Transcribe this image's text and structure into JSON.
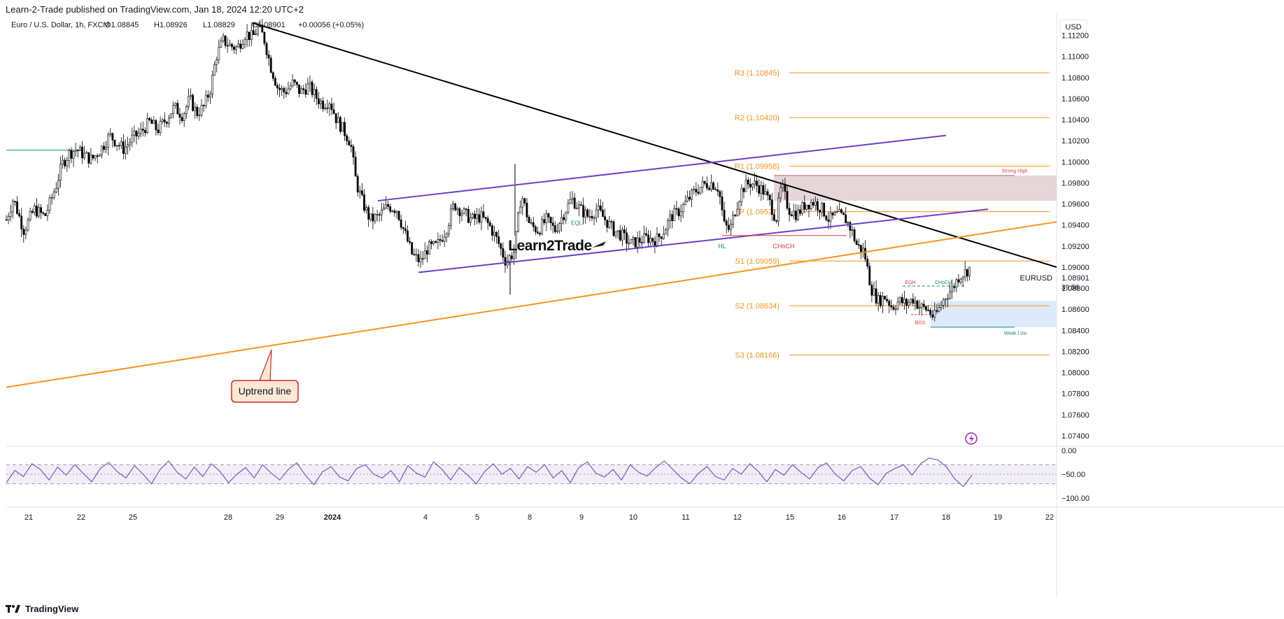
{
  "header": {
    "published": "Learn-2-Trade published on TradingView.com, Jan 18, 2024 12:20 UTC+2"
  },
  "legend": {
    "symbol": "Euro / U.S. Dollar, 1h, FXCM",
    "o": "O1.08845",
    "h": "H1.08926",
    "l": "L1.08829",
    "c": "C1.08901",
    "change": "+0.00056 (+0.05%)"
  },
  "footer": {
    "brand": "TradingView"
  },
  "colors": {
    "bull": "#ffffff",
    "bear": "#000000",
    "pivot": "#f7931e",
    "channel": "#6a3fc8",
    "trendline": "#000000",
    "rsi": "#7e57c2",
    "supply_zone": "#c9a3aa",
    "demand_zone": "#d8e8fb",
    "teal": "#14897e",
    "red_label": "#e03a3a"
  },
  "chart_data": {
    "type": "candlestick",
    "symbol": "EURUSD",
    "timeframe": "1h",
    "currency": "USD",
    "ylim": [
      1.073,
      1.1135
    ],
    "y_ticks": [
      "1.11200",
      "1.11000",
      "1.10800",
      "1.10600",
      "1.10400",
      "1.10200",
      "1.10000",
      "1.09800",
      "1.09600",
      "1.09400",
      "1.09200",
      "1.09000",
      "1.08800",
      "1.08600",
      "1.08400",
      "1.08200",
      "1.08000",
      "1.07800",
      "1.07600",
      "1.07400"
    ],
    "x_ticks": [
      "21",
      "22",
      "25",
      "28",
      "29",
      "2024",
      "4",
      "5",
      "8",
      "9",
      "10",
      "11",
      "12",
      "15",
      "16",
      "17",
      "18",
      "19",
      "22"
    ],
    "last_price": "1.08901",
    "last_label": "EURUSD",
    "countdown": "39:58",
    "price_path": [
      [
        0,
        1.0945
      ],
      [
        10,
        1.0965
      ],
      [
        25,
        1.0935
      ],
      [
        40,
        1.0955
      ],
      [
        55,
        1.0948
      ],
      [
        70,
        1.0975
      ],
      [
        80,
        1.0998
      ],
      [
        90,
        1.1008
      ],
      [
        100,
        1.1012
      ],
      [
        112,
        1.1006
      ],
      [
        122,
        1.1002
      ],
      [
        135,
        1.1012
      ],
      [
        148,
        1.1025
      ],
      [
        158,
        1.1018
      ],
      [
        168,
        1.1012
      ],
      [
        180,
        1.1022
      ],
      [
        192,
        1.1028
      ],
      [
        205,
        1.1038
      ],
      [
        216,
        1.103
      ],
      [
        228,
        1.104
      ],
      [
        240,
        1.1052
      ],
      [
        252,
        1.1044
      ],
      [
        262,
        1.106
      ],
      [
        272,
        1.1046
      ],
      [
        282,
        1.1052
      ],
      [
        292,
        1.107
      ],
      [
        300,
        1.11
      ],
      [
        310,
        1.1115
      ],
      [
        320,
        1.111
      ],
      [
        330,
        1.1108
      ],
      [
        342,
        1.1122
      ],
      [
        352,
        1.1118
      ],
      [
        360,
        1.1128
      ],
      [
        368,
        1.1118
      ],
      [
        378,
        1.109
      ],
      [
        388,
        1.107
      ],
      [
        398,
        1.1066
      ],
      [
        410,
        1.1075
      ],
      [
        420,
        1.1066
      ],
      [
        432,
        1.1072
      ],
      [
        442,
        1.1062
      ],
      [
        452,
        1.1055
      ],
      [
        462,
        1.1058
      ],
      [
        472,
        1.104
      ],
      [
        482,
        1.103
      ],
      [
        492,
        1.1018
      ],
      [
        500,
        1.098
      ],
      [
        510,
        1.096
      ],
      [
        520,
        1.0945
      ],
      [
        532,
        1.0948
      ],
      [
        545,
        1.0958
      ],
      [
        558,
        1.0955
      ],
      [
        568,
        1.0935
      ],
      [
        580,
        1.0912
      ],
      [
        592,
        1.0905
      ],
      [
        602,
        1.0918
      ],
      [
        615,
        1.092
      ],
      [
        628,
        1.0935
      ],
      [
        640,
        1.096
      ],
      [
        652,
        1.0952
      ],
      [
        665,
        1.0945
      ],
      [
        678,
        1.0948
      ],
      [
        690,
        1.094
      ],
      [
        702,
        1.0925
      ],
      [
        714,
        1.0905
      ],
      [
        726,
        1.0915
      ],
      [
        736,
        1.097
      ],
      [
        748,
        1.094
      ],
      [
        760,
        1.0935
      ],
      [
        772,
        1.0945
      ],
      [
        784,
        1.0935
      ],
      [
        796,
        1.095
      ],
      [
        808,
        1.0965
      ],
      [
        820,
        1.0955
      ],
      [
        832,
        1.0948
      ],
      [
        844,
        1.0955
      ],
      [
        856,
        1.0945
      ],
      [
        868,
        1.0935
      ],
      [
        880,
        1.093
      ],
      [
        892,
        1.0922
      ],
      [
        904,
        1.0925
      ],
      [
        916,
        1.0928
      ],
      [
        928,
        1.0925
      ],
      [
        940,
        1.0935
      ],
      [
        950,
        1.0948
      ],
      [
        960,
        1.0952
      ],
      [
        972,
        1.0962
      ],
      [
        984,
        1.0972
      ],
      [
        996,
        1.0978
      ],
      [
        1008,
        1.098
      ],
      [
        1018,
        1.0975
      ],
      [
        1026,
        1.094
      ],
      [
        1034,
        1.0935
      ],
      [
        1042,
        1.0955
      ],
      [
        1052,
        1.0975
      ],
      [
        1062,
        1.098
      ],
      [
        1072,
        1.0978
      ],
      [
        1082,
        1.0972
      ],
      [
        1092,
        1.096
      ],
      [
        1100,
        1.0945
      ],
      [
        1108,
        1.0978
      ],
      [
        1118,
        1.0955
      ],
      [
        1130,
        1.095
      ],
      [
        1142,
        1.096
      ],
      [
        1154,
        1.0962
      ],
      [
        1166,
        1.0955
      ],
      [
        1176,
        1.0945
      ],
      [
        1188,
        1.095
      ],
      [
        1200,
        1.0945
      ],
      [
        1208,
        1.0935
      ],
      [
        1216,
        1.092
      ],
      [
        1226,
        1.0915
      ],
      [
        1236,
        1.088
      ],
      [
        1246,
        1.0868
      ],
      [
        1256,
        1.0872
      ],
      [
        1266,
        1.0862
      ],
      [
        1276,
        1.0868
      ],
      [
        1286,
        1.0865
      ],
      [
        1296,
        1.087
      ],
      [
        1306,
        1.0862
      ],
      [
        1316,
        1.086
      ],
      [
        1326,
        1.0852
      ],
      [
        1334,
        1.0862
      ],
      [
        1342,
        1.0872
      ],
      [
        1352,
        1.088
      ],
      [
        1362,
        1.0892
      ],
      [
        1370,
        1.0895
      ],
      [
        1378,
        1.09
      ],
      [
        1384,
        1.0882
      ],
      [
        1390,
        1.089
      ]
    ],
    "pivots": [
      {
        "label": "R3 (1.10845)",
        "value": 1.10845
      },
      {
        "label": "R2 (1.10420)",
        "value": 1.1042
      },
      {
        "label": "R1 (1.09958)",
        "value": 1.09958
      },
      {
        "label": "P (1.09527)",
        "value": 1.09527
      },
      {
        "label": "S1 (1.09059)",
        "value": 1.09059
      },
      {
        "label": "S2 (1.08634)",
        "value": 1.08634
      },
      {
        "label": "S3 (1.08166)",
        "value": 1.08166
      }
    ],
    "structure_labels": [
      "EQL",
      "HL",
      "CHoCH",
      "Strong High",
      "EQH",
      "CHoCH",
      "BOS",
      "Weak Low"
    ],
    "annotation": "Uptrend line",
    "watermark_logo": "Learn2Trade",
    "rsi": {
      "ticks": [
        "0.00",
        "−50.00",
        "−100.00"
      ],
      "levels": [
        -30,
        -50,
        -70
      ],
      "ylim": [
        -100,
        0
      ],
      "values": [
        -68,
        -42,
        -55,
        -28,
        -40,
        -62,
        -35,
        -52,
        -30,
        -48,
        -66,
        -38,
        -25,
        -45,
        -58,
        -32,
        -50,
        -70,
        -40,
        -22,
        -46,
        -60,
        -35,
        -55,
        -28,
        -44,
        -68,
        -50,
        -36,
        -58,
        -30,
        -48,
        -62,
        -40,
        -26,
        -52,
        -72,
        -45,
        -34,
        -56,
        -64,
        -38,
        -30,
        -50,
        -58,
        -42,
        -66,
        -32,
        -48,
        -56,
        -24,
        -40,
        -62,
        -36,
        -52,
        -70,
        -44,
        -28,
        -50,
        -38,
        -60,
        -34,
        -46,
        -30,
        -58,
        -42,
        -68,
        -36,
        -24,
        -48,
        -56,
        -40,
        -62,
        -30,
        -46,
        -54,
        -36,
        -22,
        -40,
        -58,
        -70,
        -48,
        -34,
        -55,
        -62,
        -38,
        -50,
        -28,
        -44,
        -66,
        -40,
        -52,
        -30,
        -46,
        -60,
        -36,
        -26,
        -50,
        -64,
        -42,
        -34,
        -58,
        -72,
        -48,
        -38,
        -30,
        -52,
        -28,
        -16,
        -20,
        -34,
        -60,
        -76,
        -52
      ]
    }
  }
}
